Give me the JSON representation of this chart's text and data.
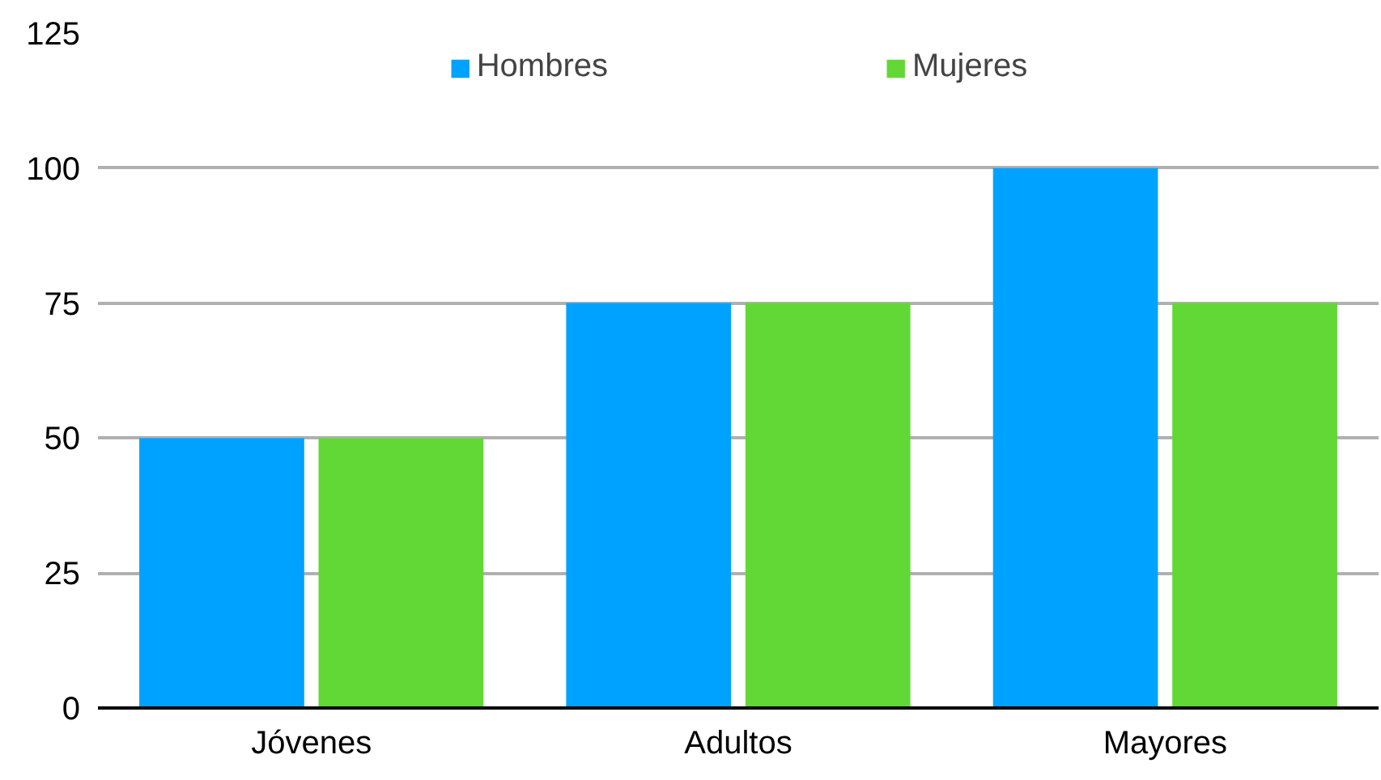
{
  "chart_data": {
    "type": "bar",
    "categories": [
      "Jóvenes",
      "Adultos",
      "Mayores"
    ],
    "series": [
      {
        "name": "Hombres",
        "color": "#00a2ff",
        "values": [
          50,
          75,
          100
        ]
      },
      {
        "name": "Mujeres",
        "color": "#61d836",
        "values": [
          50,
          75,
          75
        ]
      }
    ],
    "ylim": [
      0,
      125
    ],
    "yticks": [
      0,
      25,
      50,
      75,
      100,
      125
    ],
    "grid": "y",
    "legend": "top"
  }
}
